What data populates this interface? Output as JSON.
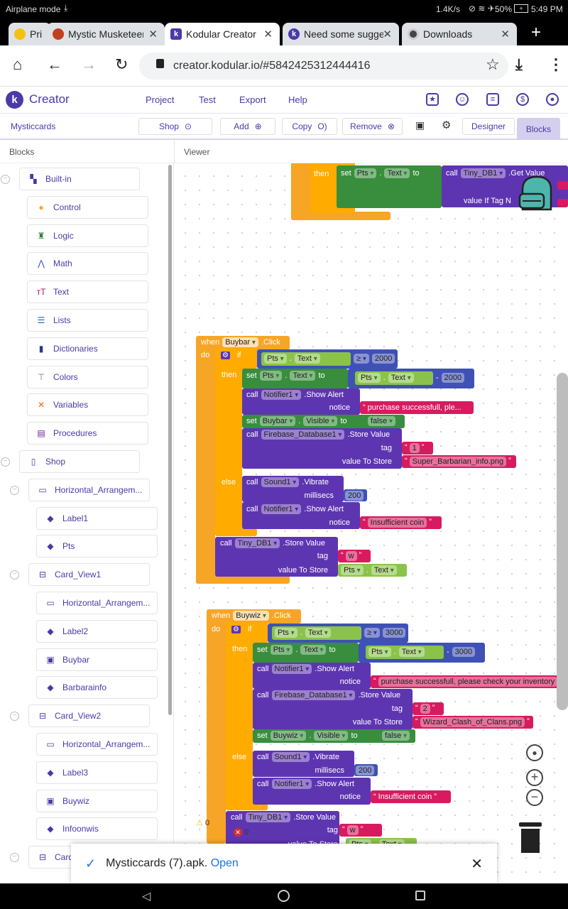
{
  "status": {
    "left": "Airplane mode",
    "speed": "1.4K/s",
    "battery": "50%",
    "time": "5:49 PM"
  },
  "tabs": [
    {
      "label": "Pri"
    },
    {
      "label": "Mystic Musketeers"
    },
    {
      "label": "Kodular Creator",
      "active": true
    },
    {
      "label": "Need some suggestions"
    },
    {
      "label": "Downloads"
    }
  ],
  "url": "creator.kodular.io/#5842425312444416",
  "app": {
    "logo": "Creator",
    "menu": [
      "Project",
      "Test",
      "Export",
      "Help"
    ]
  },
  "toolbar": {
    "project": "Mysticcards",
    "screen": "Shop",
    "add": "Add",
    "copy": "Copy",
    "remove": "Remove",
    "designer": "Designer",
    "blocks": "Blocks",
    "active_view": "Blocks"
  },
  "panels": {
    "left": "Blocks",
    "right": "Viewer"
  },
  "sidebar": {
    "items": [
      {
        "label": "Built-in",
        "icon": "puzzle-icon",
        "depth": 0,
        "expanded": true,
        "color": "#4a3aa8"
      },
      {
        "label": "Control",
        "icon": "control-icon",
        "depth": 1,
        "color": "#f9a825"
      },
      {
        "label": "Logic",
        "icon": "logic-icon",
        "depth": 1,
        "color": "#2e7d32"
      },
      {
        "label": "Math",
        "icon": "math-icon",
        "depth": 1,
        "color": "#3f51b5"
      },
      {
        "label": "Text",
        "icon": "text-icon",
        "depth": 1,
        "color": "#ad1457"
      },
      {
        "label": "Lists",
        "icon": "lists-icon",
        "depth": 1,
        "color": "#1565c0"
      },
      {
        "label": "Dictionaries",
        "icon": "dictionaries-icon",
        "depth": 1,
        "color": "#283593"
      },
      {
        "label": "Colors",
        "icon": "colors-icon",
        "depth": 1,
        "color": "#777777"
      },
      {
        "label": "Variables",
        "icon": "variables-icon",
        "depth": 1,
        "color": "#ef6c00"
      },
      {
        "label": "Procedures",
        "icon": "procedures-icon",
        "depth": 1,
        "color": "#6a1b9a"
      },
      {
        "label": "Shop",
        "icon": "phone-icon",
        "depth": 0,
        "expanded": true,
        "color": "#4a3aa8"
      },
      {
        "label": "Horizontal_Arrangem...",
        "icon": "horizontal-arrangement-icon",
        "depth": 1,
        "expanded": true,
        "color": "#4a3aa8"
      },
      {
        "label": "Label1",
        "icon": "label-icon",
        "depth": 2,
        "color": "#4a3aa8"
      },
      {
        "label": "Pts",
        "icon": "label-icon",
        "depth": 2,
        "color": "#4a3aa8"
      },
      {
        "label": "Card_View1",
        "icon": "card-view-icon",
        "depth": 1,
        "expanded": true,
        "color": "#4a3aa8"
      },
      {
        "label": "Horizontal_Arrangem...",
        "icon": "horizontal-arrangement-icon",
        "depth": 2,
        "color": "#4a3aa8"
      },
      {
        "label": "Label2",
        "icon": "label-icon",
        "depth": 2,
        "color": "#4a3aa8"
      },
      {
        "label": "Buybar",
        "icon": "button-icon",
        "depth": 2,
        "color": "#4a3aa8"
      },
      {
        "label": "Barbarainfo",
        "icon": "label-icon",
        "depth": 2,
        "color": "#4a3aa8"
      },
      {
        "label": "Card_View2",
        "icon": "card-view-icon",
        "depth": 1,
        "expanded": true,
        "color": "#4a3aa8"
      },
      {
        "label": "Horizontal_Arrangem...",
        "icon": "horizontal-arrangement-icon",
        "depth": 2,
        "color": "#4a3aa8"
      },
      {
        "label": "Label3",
        "icon": "label-icon",
        "depth": 2,
        "color": "#4a3aa8"
      },
      {
        "label": "Buywiz",
        "icon": "button-icon",
        "depth": 2,
        "color": "#4a3aa8"
      },
      {
        "label": "Infoonwis",
        "icon": "label-icon",
        "depth": 2,
        "color": "#4a3aa8"
      },
      {
        "label": "Card",
        "icon": "card-view-icon",
        "depth": 1,
        "expanded": true,
        "color": "#4a3aa8"
      }
    ]
  },
  "colors": {
    "event": "#f7a526",
    "control": "#ffab00",
    "setter": "#388e3c",
    "method": "#5e35b1",
    "math": "#3f51b5",
    "getter": "#8bc34a",
    "text": "#d81b60",
    "accent": "#4a3aa8"
  },
  "kw": {
    "when": "when",
    "do": "do",
    "if": "if",
    "then": "then",
    "else": "else",
    "set": "set",
    "call": "call",
    "to": "to",
    "dot": ".",
    "minus": "-",
    "gte": "≥",
    "click": ".Click",
    "show_alert": ".Show Alert",
    "store_value": ".Store Value",
    "vibrate": ".Vibrate",
    "get_value": ".Get Value",
    "notice": "notice",
    "tag": "tag",
    "value_to_store": "value To Store",
    "millisecs": "millisecs",
    "value_if_tag": "value If Tag N",
    "false": "false",
    "open_quote": "“",
    "close_quote": "”"
  },
  "comp": {
    "pts": "Pts",
    "text": "Text",
    "visible": "Visible",
    "tinydb": "Tiny_DB1",
    "notifier": "Notifier1",
    "firebase": "Firebase_Database1",
    "sound": "Sound1",
    "buybar": "Buybar",
    "buywiz": "Buywiz"
  },
  "vals": {
    "n2000": "2000",
    "n3000": "3000",
    "n200": "200",
    "tag1": "1",
    "tag2": "2",
    "tagw": "w",
    "msg_short": "purchase successfull, ple...",
    "msg_full": "purchase successfull, please check your inventory",
    "insufficient": "Insufficient coin",
    "barbarian_img": "Super_Barbarian_info.png",
    "wizard_img": "Wizard_Clash_of_Clans.png"
  },
  "warnings": {
    "warnings": "0",
    "errors": "0"
  },
  "download": {
    "file": "Mysticcards (7).apk.",
    "action": "Open"
  }
}
